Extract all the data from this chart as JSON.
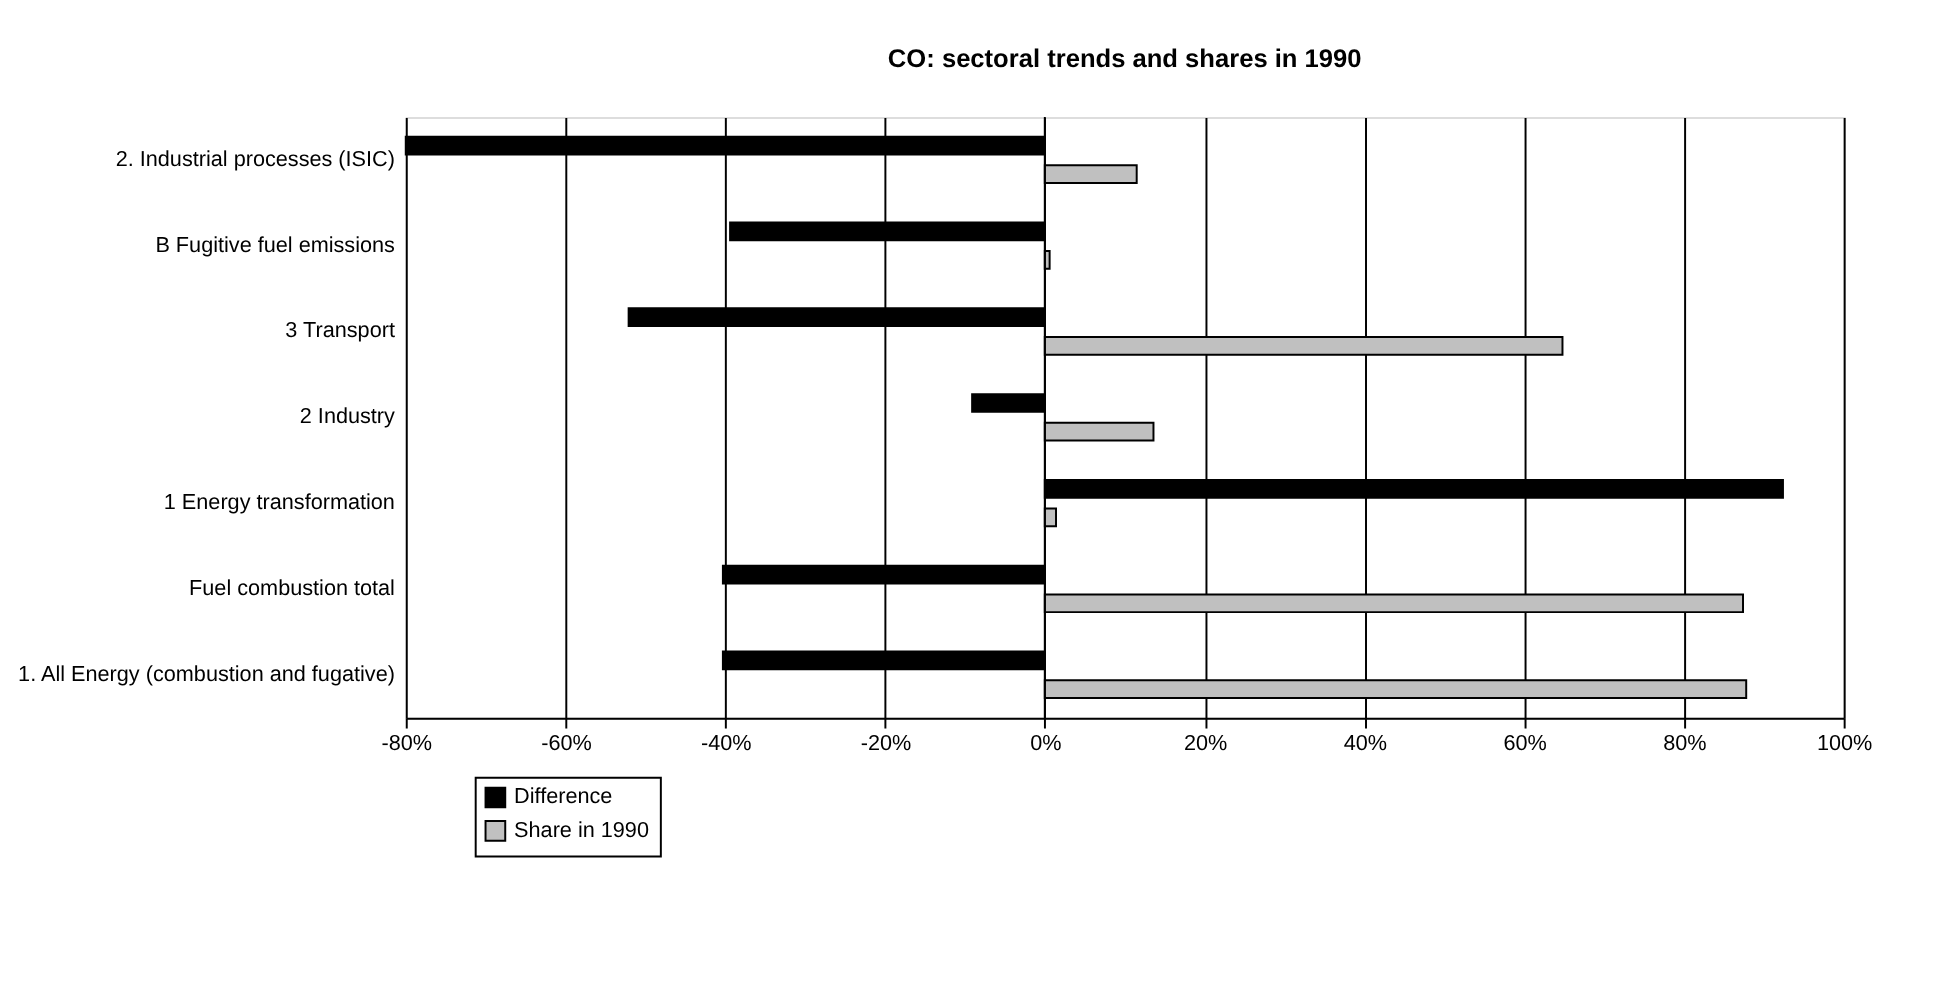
{
  "chart_data": {
    "type": "bar",
    "orientation": "horizontal",
    "title": "CO: sectoral trends and shares in 1990",
    "categories": [
      "2. Industrial processes (ISIC)",
      "B Fugitive fuel emissions",
      "3 Transport",
      "2 Industry",
      "1 Energy transformation",
      "Fuel combustion   total",
      "1. All Energy (combustion and fugative)"
    ],
    "series": [
      {
        "name": "Difference",
        "color": "#000000",
        "values": [
          -80,
          -39.4,
          -52.1,
          -9.1,
          92.4,
          -40.3,
          -40.3
        ]
      },
      {
        "name": "Share in 1990",
        "color": "#c0c0c0",
        "values": [
          11.5,
          0.6,
          64.8,
          13.6,
          1.4,
          87.4,
          87.8
        ]
      }
    ],
    "xlim": [
      -80,
      100
    ],
    "xticks": [
      {
        "value": -80,
        "label": "-80%"
      },
      {
        "value": -60,
        "label": "-60%"
      },
      {
        "value": -40,
        "label": "-40%"
      },
      {
        "value": -20,
        "label": "-20%"
      },
      {
        "value": 0,
        "label": "0%"
      },
      {
        "value": 20,
        "label": "20%"
      },
      {
        "value": 40,
        "label": "40%"
      },
      {
        "value": 60,
        "label": "60%"
      },
      {
        "value": 80,
        "label": "80%"
      },
      {
        "value": 100,
        "label": "100%"
      }
    ],
    "grid": "x",
    "legend": "bottom left"
  }
}
